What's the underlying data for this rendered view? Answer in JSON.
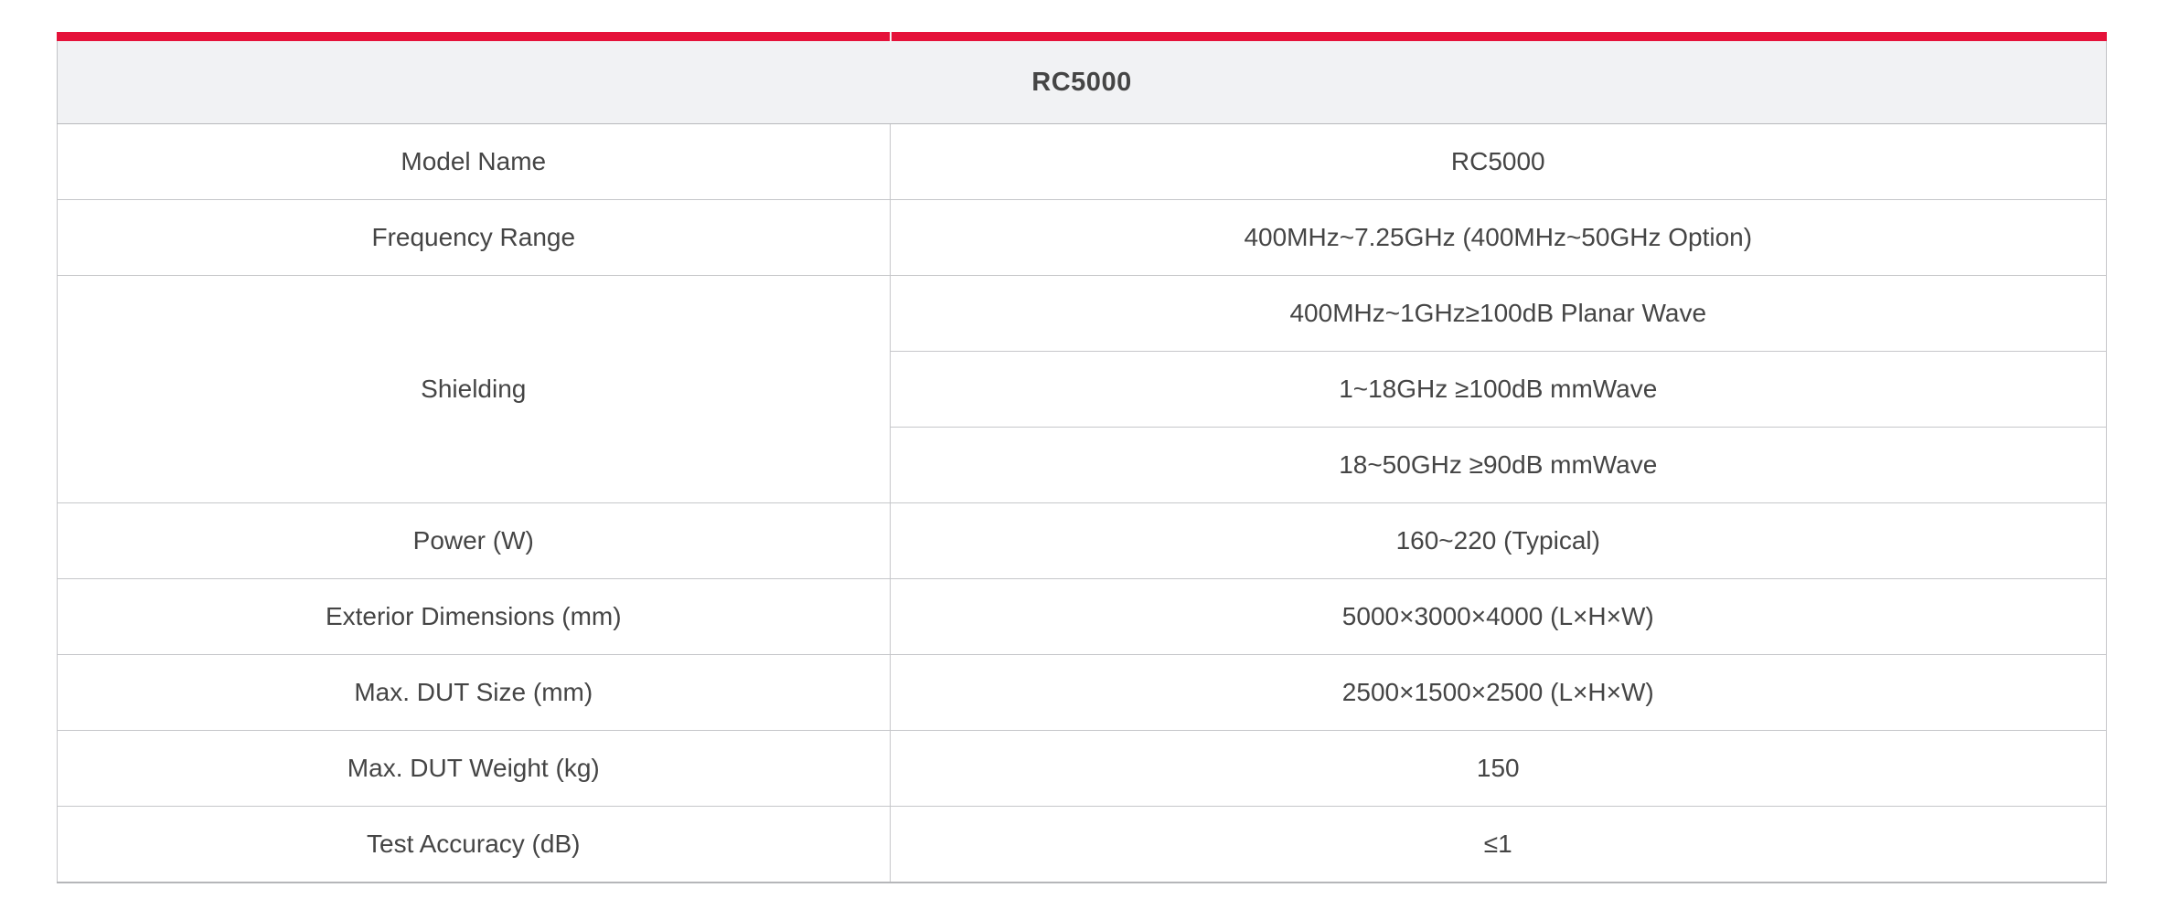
{
  "colors": {
    "accent_red": "#e5123a",
    "title_row_bg": "#f1f2f4",
    "border": "#c6c7ca",
    "text": "#454545"
  },
  "spec_table": {
    "title": "RC5000",
    "rows": [
      {
        "label": "Model Name",
        "values": [
          "RC5000"
        ]
      },
      {
        "label": "Frequency Range",
        "values": [
          "400MHz~7.25GHz (400MHz~50GHz Option)"
        ]
      },
      {
        "label": "Shielding",
        "values": [
          "400MHz~1GHz≥100dB Planar Wave",
          "1~18GHz ≥100dB mmWave",
          "18~50GHz ≥90dB mmWave"
        ]
      },
      {
        "label": "Power (W)",
        "values": [
          "160~220 (Typical)"
        ]
      },
      {
        "label": "Exterior Dimensions (mm)",
        "values": [
          "5000×3000×4000 (L×H×W)"
        ]
      },
      {
        "label": "Max. DUT Size (mm)",
        "values": [
          "2500×1500×2500 (L×H×W)"
        ]
      },
      {
        "label": "Max. DUT Weight (kg)",
        "values": [
          "150"
        ]
      },
      {
        "label": "Test Accuracy (dB)",
        "values": [
          "≤1"
        ]
      }
    ]
  }
}
